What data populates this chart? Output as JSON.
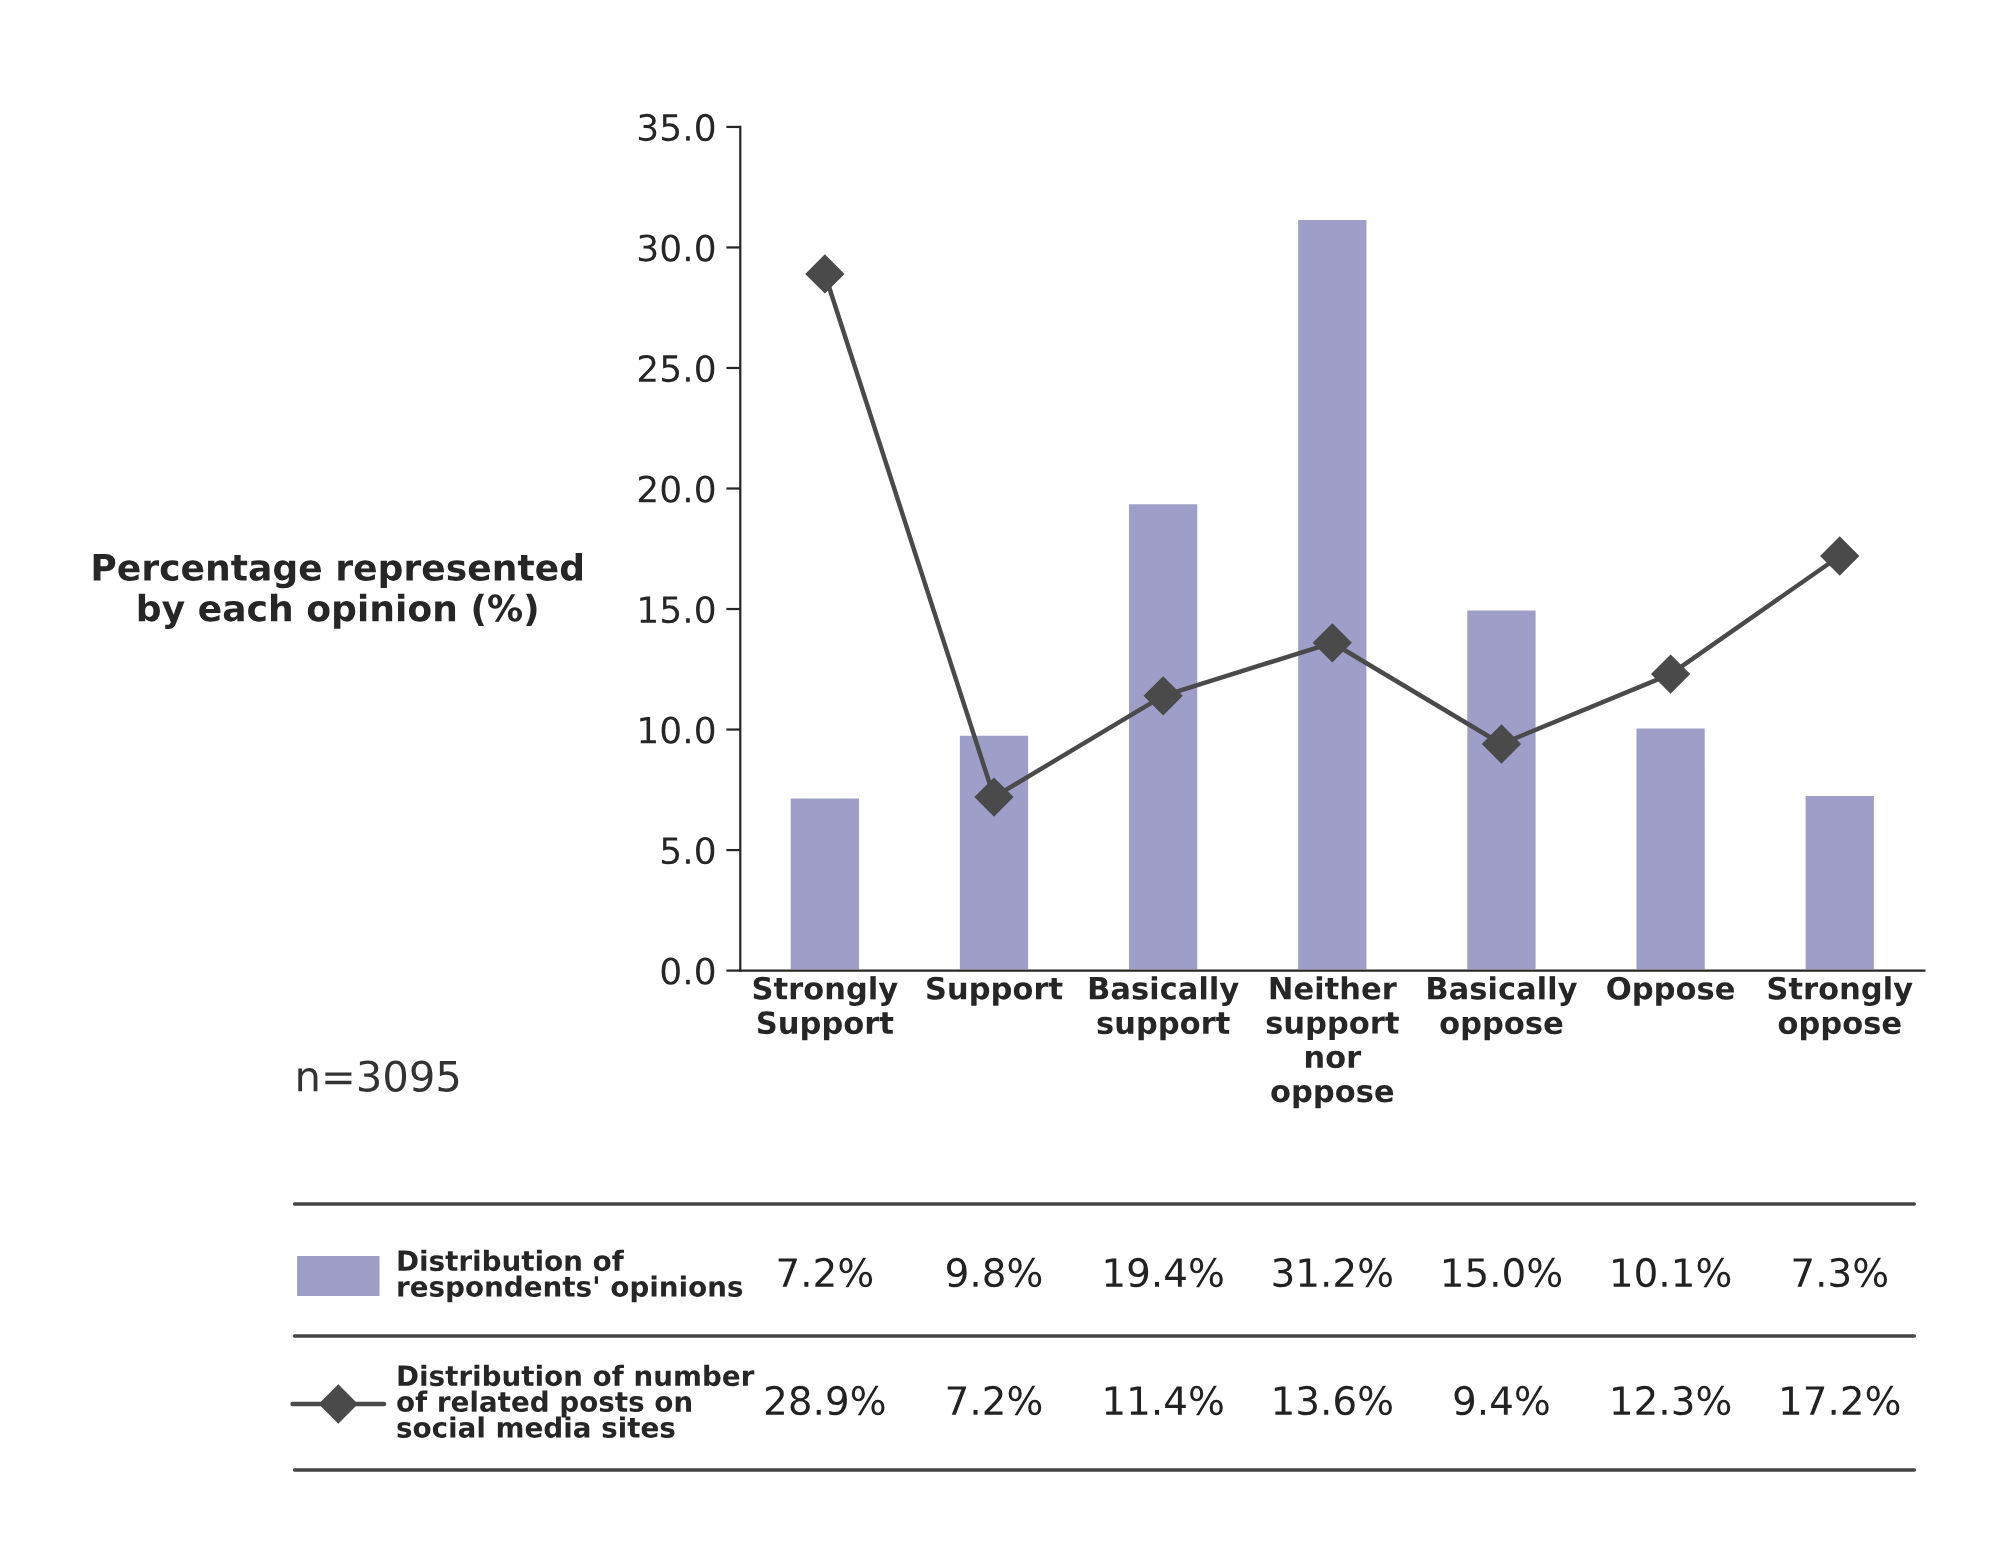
{
  "chart_data": {
    "type": "bar",
    "ylabel": "Percentage represented\nby each opinion (%)",
    "categories": [
      "Strongly\nSupport",
      "Support",
      "Basically\nsupport",
      "Neither\nsupport\nnor\noppose",
      "Basically\noppose",
      "Oppose",
      "Strongly\noppose"
    ],
    "series": [
      {
        "name": "Distribution of\nrespondents' opinions",
        "color": "#9e9ec9",
        "values": [
          7.2,
          9.8,
          19.4,
          31.2,
          15.0,
          10.1,
          7.3
        ],
        "value_labels": [
          "7.2%",
          "9.8%",
          "19.4%",
          "31.2%",
          "15.0%",
          "10.1%",
          "7.3%"
        ]
      },
      {
        "name": "Distribution of number\nof related posts on\nsocial media sites",
        "type": "line",
        "color": "#4a4a4a",
        "marker": "diamond",
        "line_style": "solid",
        "values": [
          28.9,
          7.2,
          11.4,
          13.6,
          9.4,
          12.3,
          17.2
        ],
        "value_labels": [
          "28.9%",
          "7.2%",
          "11.4%",
          "13.6%",
          "9.4%",
          "12.3%",
          "17.2%"
        ]
      }
    ],
    "ylim": [
      0,
      35
    ],
    "yticks": [
      {
        "value": 0,
        "label": "0.0"
      },
      {
        "value": 5,
        "label": "5.0"
      },
      {
        "value": 10,
        "label": "10.0"
      },
      {
        "value": 15,
        "label": "15.0"
      },
      {
        "value": 20,
        "label": "20.0"
      },
      {
        "value": 25,
        "label": "25.0"
      },
      {
        "value": 30,
        "label": "30.0"
      },
      {
        "value": 35,
        "label": "35.0"
      }
    ],
    "annotations": [
      "n=3095"
    ],
    "legend": "bottom",
    "grid": false
  }
}
